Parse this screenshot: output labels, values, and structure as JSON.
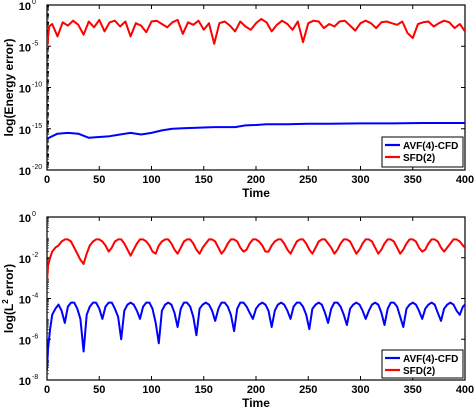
{
  "chart_data": [
    {
      "type": "line",
      "xlabel": "Time",
      "ylabel": "log(Energy error)",
      "xlim": [
        0,
        400
      ],
      "xticks": [
        "0",
        "50",
        "100",
        "150",
        "200",
        "250",
        "300",
        "350",
        "400"
      ],
      "yscale": "log",
      "ylim_exp": [
        -20,
        0
      ],
      "yticks": [
        {
          "base": "10",
          "exp": "0"
        },
        {
          "base": "10",
          "exp": "-5"
        },
        {
          "base": "10",
          "exp": "-10"
        },
        {
          "base": "10",
          "exp": "-15"
        },
        {
          "base": "10",
          "exp": "-20"
        }
      ],
      "legend_position": "bottom-right",
      "series": [
        {
          "name": "AVF(4)-CFD",
          "color": "#0000ff",
          "x": [
            0,
            10,
            20,
            30,
            40,
            50,
            60,
            70,
            80,
            90,
            100,
            110,
            120,
            130,
            140,
            150,
            160,
            170,
            180,
            190,
            200,
            210,
            230,
            250,
            270,
            300,
            330,
            360,
            400
          ],
          "log10_y": [
            -16.2,
            -15.6,
            -15.5,
            -15.6,
            -16.1,
            -16.0,
            -15.9,
            -15.7,
            -15.5,
            -15.7,
            -15.5,
            -15.2,
            -15.0,
            -14.95,
            -14.9,
            -14.85,
            -14.8,
            -14.8,
            -14.8,
            -14.6,
            -14.55,
            -14.45,
            -14.45,
            -14.4,
            -14.4,
            -14.35,
            -14.35,
            -14.3,
            -14.3
          ]
        },
        {
          "name": "SFD(2)",
          "color": "#ff0000",
          "x": [
            0,
            2,
            5,
            10,
            15,
            20,
            25,
            30,
            35,
            40,
            45,
            50,
            55,
            60,
            65,
            70,
            75,
            80,
            85,
            90,
            95,
            100,
            105,
            110,
            115,
            120,
            125,
            130,
            135,
            140,
            145,
            150,
            155,
            160,
            165,
            170,
            175,
            180,
            185,
            190,
            195,
            200,
            205,
            210,
            215,
            220,
            225,
            230,
            235,
            240,
            245,
            250,
            255,
            260,
            265,
            270,
            275,
            280,
            285,
            290,
            295,
            300,
            305,
            310,
            315,
            320,
            325,
            330,
            335,
            340,
            345,
            350,
            355,
            360,
            365,
            370,
            375,
            380,
            385,
            390,
            395,
            400
          ],
          "log10_y": [
            -5.2,
            -2.6,
            -2.3,
            -3.8,
            -2.1,
            -2.5,
            -1.9,
            -2.4,
            -3.6,
            -2.0,
            -2.7,
            -1.8,
            -3.2,
            -2.1,
            -1.9,
            -2.6,
            -2.0,
            -3.8,
            -2.2,
            -2.5,
            -3.3,
            -2.0,
            -1.9,
            -2.3,
            -2.7,
            -2.1,
            -1.8,
            -3.5,
            -2.1,
            -2.4,
            -1.9,
            -3.0,
            -2.2,
            -4.7,
            -2.2,
            -2.0,
            -2.5,
            -3.2,
            -2.0,
            -2.6,
            -3.0,
            -2.2,
            -1.7,
            -2.1,
            -3.2,
            -2.4,
            -1.9,
            -2.3,
            -3.0,
            -2.0,
            -4.5,
            -2.2,
            -1.9,
            -2.0,
            -2.8,
            -2.3,
            -2.6,
            -2.0,
            -1.9,
            -2.5,
            -3.1,
            -2.2,
            -1.9,
            -2.2,
            -2.8,
            -2.1,
            -2.0,
            -2.2,
            -2.4,
            -2.0,
            -3.4,
            -4.0,
            -2.3,
            -2.1,
            -2.0,
            -2.6,
            -2.2,
            -1.9,
            -2.1,
            -2.8,
            -2.3,
            -3.2
          ]
        }
      ]
    },
    {
      "type": "line",
      "xlabel": "Time",
      "ylabel_prefix": "log(L",
      "ylabel_sup": "2",
      "ylabel_suffix": " error)",
      "xlim": [
        0,
        400
      ],
      "xticks": [
        "0",
        "50",
        "100",
        "150",
        "200",
        "250",
        "300",
        "350",
        "400"
      ],
      "yscale": "log",
      "ylim_exp": [
        -8,
        0
      ],
      "yticks": [
        {
          "base": "10",
          "exp": "0"
        },
        {
          "base": "10",
          "exp": "-2"
        },
        {
          "base": "10",
          "exp": "-4"
        },
        {
          "base": "10",
          "exp": "-6"
        },
        {
          "base": "10",
          "exp": "-8"
        }
      ],
      "legend_position": "bottom-right",
      "series": [
        {
          "name": "AVF(4)-CFD",
          "color": "#0000ff",
          "x": [
            0,
            1,
            3,
            5,
            8,
            11,
            14,
            17,
            20,
            23,
            26,
            29,
            32,
            35,
            38,
            41,
            44,
            47,
            50,
            53,
            56,
            59,
            62,
            65,
            68,
            71,
            74,
            77,
            80,
            83,
            86,
            89,
            92,
            95,
            98,
            101,
            104,
            107,
            110,
            113,
            116,
            119,
            122,
            125,
            128,
            131,
            134,
            137,
            140,
            143,
            146,
            149,
            152,
            155,
            158,
            161,
            164,
            167,
            170,
            173,
            176,
            179,
            182,
            185,
            188,
            191,
            194,
            197,
            200,
            203,
            206,
            209,
            212,
            215,
            218,
            221,
            224,
            227,
            230,
            233,
            236,
            239,
            242,
            245,
            248,
            251,
            254,
            257,
            260,
            263,
            266,
            269,
            272,
            275,
            278,
            281,
            284,
            287,
            290,
            293,
            296,
            299,
            302,
            305,
            308,
            311,
            314,
            317,
            320,
            323,
            326,
            329,
            332,
            335,
            338,
            341,
            344,
            347,
            350,
            353,
            356,
            359,
            362,
            365,
            368,
            371,
            374,
            377,
            380,
            383,
            386,
            389,
            392,
            395,
            398,
            400
          ],
          "log10_y": [
            -7.5,
            -6.5,
            -5.5,
            -4.8,
            -4.5,
            -4.3,
            -4.6,
            -5.2,
            -4.4,
            -4.2,
            -4.2,
            -4.5,
            -5.0,
            -6.6,
            -4.8,
            -4.4,
            -4.2,
            -4.2,
            -4.5,
            -5.0,
            -4.4,
            -4.2,
            -4.2,
            -4.5,
            -4.9,
            -6.0,
            -4.6,
            -4.3,
            -4.2,
            -4.3,
            -4.6,
            -5.0,
            -4.4,
            -4.2,
            -4.2,
            -4.5,
            -5.2,
            -6.2,
            -4.6,
            -4.3,
            -4.2,
            -4.3,
            -4.7,
            -5.4,
            -4.5,
            -4.2,
            -4.2,
            -4.4,
            -4.9,
            -5.8,
            -4.5,
            -4.3,
            -4.2,
            -4.3,
            -4.6,
            -5.1,
            -4.5,
            -4.2,
            -4.2,
            -4.4,
            -4.8,
            -5.6,
            -4.5,
            -4.2,
            -4.2,
            -4.4,
            -4.7,
            -5.0,
            -4.5,
            -4.3,
            -4.2,
            -4.3,
            -4.6,
            -5.4,
            -4.6,
            -4.3,
            -4.2,
            -4.3,
            -4.6,
            -5.0,
            -4.4,
            -4.2,
            -4.2,
            -4.4,
            -4.8,
            -5.5,
            -4.5,
            -4.3,
            -4.2,
            -4.3,
            -4.7,
            -5.2,
            -4.5,
            -4.2,
            -4.2,
            -4.4,
            -4.8,
            -5.3,
            -4.5,
            -4.3,
            -4.2,
            -4.3,
            -4.6,
            -5.0,
            -4.6,
            -4.3,
            -4.2,
            -4.3,
            -4.7,
            -5.3,
            -4.5,
            -4.2,
            -4.2,
            -4.4,
            -4.9,
            -5.4,
            -4.5,
            -4.3,
            -4.2,
            -4.3,
            -4.6,
            -5.0,
            -4.5,
            -4.3,
            -4.2,
            -4.3,
            -4.7,
            -5.1,
            -4.5,
            -4.3,
            -4.2,
            -4.3,
            -4.6,
            -4.8,
            -4.4,
            -4.3
          ],
          "note": ""
        },
        {
          "name": "SFD(2)",
          "color": "#ff0000",
          "x": [
            0,
            1,
            3,
            5,
            8,
            11,
            14,
            17,
            20,
            23,
            26,
            29,
            32,
            35,
            38,
            41,
            44,
            47,
            50,
            53,
            56,
            59,
            62,
            65,
            68,
            71,
            74,
            77,
            80,
            83,
            86,
            89,
            92,
            95,
            98,
            101,
            104,
            107,
            110,
            113,
            116,
            119,
            122,
            125,
            128,
            131,
            134,
            137,
            140,
            143,
            146,
            149,
            152,
            155,
            158,
            161,
            164,
            167,
            170,
            173,
            176,
            179,
            182,
            185,
            188,
            191,
            194,
            197,
            200,
            203,
            206,
            209,
            212,
            215,
            218,
            221,
            224,
            227,
            230,
            233,
            236,
            239,
            242,
            245,
            248,
            251,
            254,
            257,
            260,
            263,
            266,
            269,
            272,
            275,
            278,
            281,
            284,
            287,
            290,
            293,
            296,
            299,
            302,
            305,
            308,
            311,
            314,
            317,
            320,
            323,
            326,
            329,
            332,
            335,
            338,
            341,
            344,
            347,
            350,
            353,
            356,
            359,
            362,
            365,
            368,
            371,
            374,
            377,
            380,
            383,
            386,
            389,
            392,
            395,
            398,
            400
          ],
          "log10_y": [
            -3.2,
            -2.4,
            -2.0,
            -1.7,
            -1.5,
            -1.4,
            -1.2,
            -1.1,
            -1.1,
            -1.2,
            -1.5,
            -1.8,
            -2.1,
            -2.3,
            -1.8,
            -1.4,
            -1.2,
            -1.1,
            -1.1,
            -1.2,
            -1.4,
            -1.7,
            -1.5,
            -1.2,
            -1.1,
            -1.1,
            -1.3,
            -1.6,
            -1.9,
            -1.6,
            -1.3,
            -1.1,
            -1.1,
            -1.2,
            -1.4,
            -1.7,
            -1.8,
            -1.4,
            -1.2,
            -1.1,
            -1.1,
            -1.3,
            -1.6,
            -1.8,
            -1.5,
            -1.2,
            -1.1,
            -1.1,
            -1.3,
            -1.6,
            -1.8,
            -1.5,
            -1.3,
            -1.1,
            -1.1,
            -1.2,
            -1.5,
            -1.8,
            -1.6,
            -1.3,
            -1.1,
            -1.1,
            -1.2,
            -1.5,
            -1.7,
            -1.6,
            -1.3,
            -1.1,
            -1.1,
            -1.2,
            -1.4,
            -1.7,
            -1.7,
            -1.4,
            -1.2,
            -1.1,
            -1.1,
            -1.3,
            -1.6,
            -1.8,
            -1.5,
            -1.2,
            -1.1,
            -1.1,
            -1.3,
            -1.6,
            -1.8,
            -1.5,
            -1.2,
            -1.1,
            -1.1,
            -1.3,
            -1.5,
            -1.8,
            -1.6,
            -1.3,
            -1.1,
            -1.1,
            -1.2,
            -1.5,
            -1.8,
            -1.6,
            -1.3,
            -1.1,
            -1.1,
            -1.2,
            -1.5,
            -1.8,
            -1.6,
            -1.3,
            -1.1,
            -1.1,
            -1.2,
            -1.5,
            -1.8,
            -1.6,
            -1.3,
            -1.1,
            -1.1,
            -1.2,
            -1.5,
            -1.7,
            -1.6,
            -1.3,
            -1.1,
            -1.1,
            -1.2,
            -1.5,
            -1.7,
            -1.5,
            -1.3,
            -1.1,
            -1.1,
            -1.2,
            -1.4,
            -1.5
          ]
        }
      ]
    }
  ]
}
